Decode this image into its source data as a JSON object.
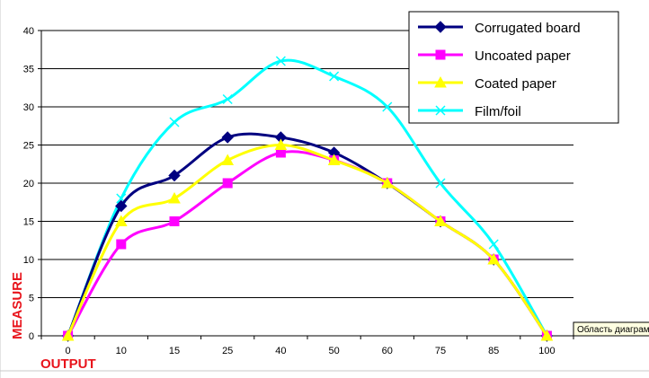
{
  "chart_data": {
    "type": "line",
    "title": "",
    "xlabel": "OUTPUT",
    "ylabel": "MEASURE",
    "categories": [
      "0",
      "10",
      "15",
      "25",
      "40",
      "50",
      "60",
      "75",
      "85",
      "100"
    ],
    "ylim": [
      0,
      40
    ],
    "yticks": [
      0,
      5,
      10,
      15,
      20,
      25,
      30,
      35,
      40
    ],
    "grid": true,
    "legend_position": "top-right",
    "series": [
      {
        "name": "Corrugated board",
        "color": "#000080",
        "marker": "diamond",
        "values": [
          0,
          17,
          21,
          26,
          26,
          24,
          20,
          15,
          10,
          0
        ]
      },
      {
        "name": "Uncoated paper",
        "color": "#ff00ff",
        "marker": "square",
        "values": [
          0,
          12,
          15,
          20,
          24,
          23,
          20,
          15,
          10,
          0
        ]
      },
      {
        "name": "Coated paper",
        "color": "#ffff00",
        "marker": "triangle",
        "values": [
          0,
          15,
          18,
          23,
          25,
          23,
          20,
          15,
          10,
          0
        ]
      },
      {
        "name": "Film/foil",
        "color": "#00ffff",
        "marker": "x",
        "values": [
          0,
          18,
          28,
          31,
          36,
          34,
          30,
          20,
          12,
          0
        ]
      }
    ]
  },
  "tooltip": {
    "label": "Область диаграммы"
  }
}
